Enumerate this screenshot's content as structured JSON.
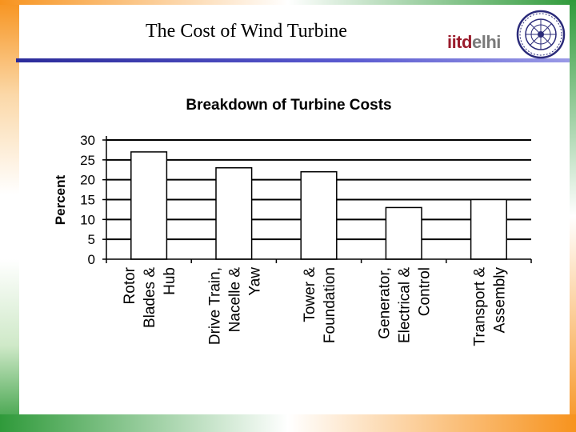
{
  "slide": {
    "title": "The Cost of Wind Turbine",
    "logo_text_a": "iitd",
    "logo_text_b": "elhi"
  },
  "colors": {
    "accent_rule": "#3a3ab8",
    "logo_red": "#9b1c2c",
    "frame_orange": "#f7931e",
    "frame_green": "#2f9a3a"
  },
  "chart_data": {
    "type": "bar",
    "title": "Breakdown of Turbine Costs",
    "xlabel": "",
    "ylabel": "Percent",
    "ylim": [
      0,
      30
    ],
    "yticks": [
      0,
      5,
      10,
      15,
      20,
      25,
      30
    ],
    "grid": true,
    "categories": [
      [
        "Rotor",
        "Blades &",
        "Hub"
      ],
      [
        "Drive Train,",
        "Nacelle &",
        "Yaw"
      ],
      [
        "Tower &",
        "Foundation"
      ],
      [
        "Generator,",
        "Electrical &",
        "Control"
      ],
      [
        "Transport &",
        "Assembly"
      ]
    ],
    "values": [
      27,
      23,
      22,
      13,
      15
    ]
  }
}
